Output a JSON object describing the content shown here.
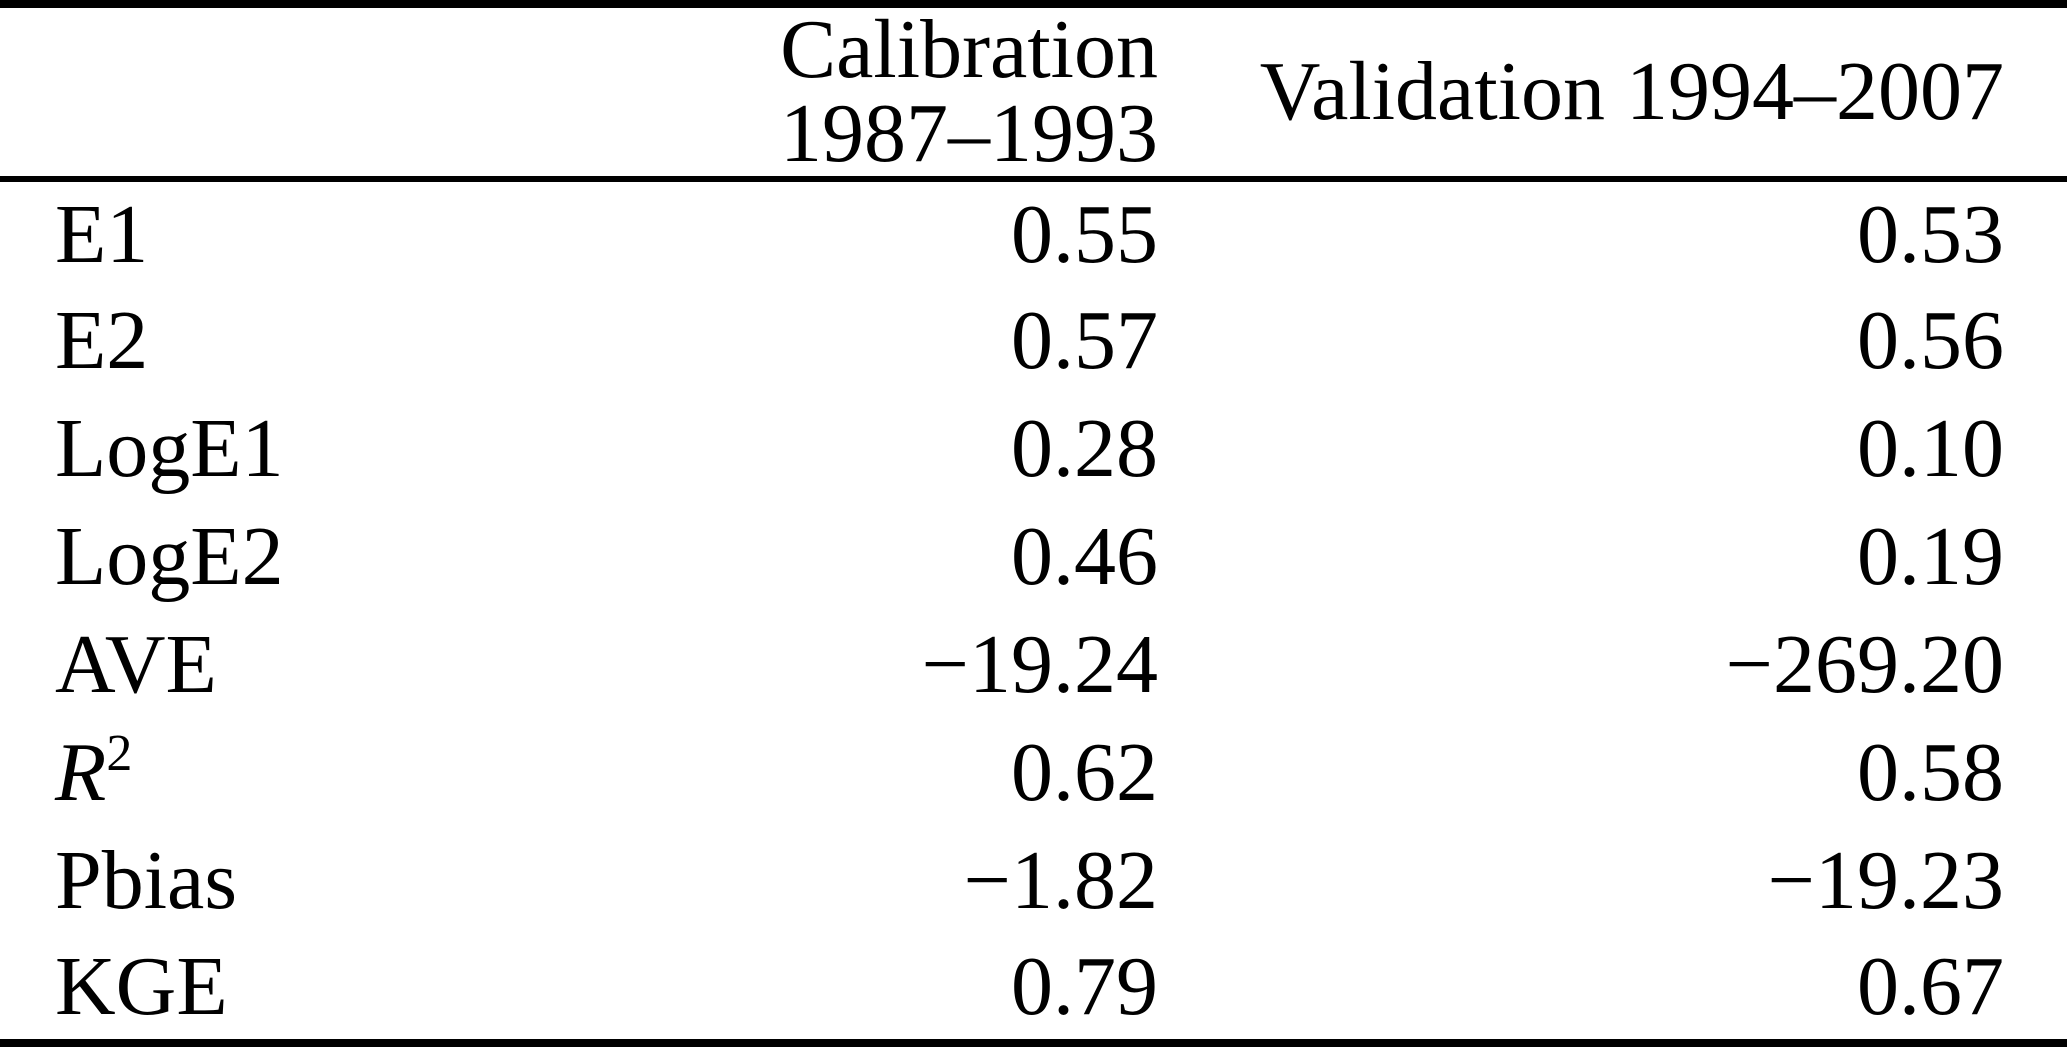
{
  "table": {
    "header": {
      "metric": "",
      "calibration": "Calibration 1987–1993",
      "validation": "Validation 1994–2007"
    },
    "rows": [
      {
        "label_base": "E1",
        "label_sup": "",
        "calibration": "0.55",
        "validation": "0.53"
      },
      {
        "label_base": "E2",
        "label_sup": "",
        "calibration": "0.57",
        "validation": "0.56"
      },
      {
        "label_base": "LogE1",
        "label_sup": "",
        "calibration": "0.28",
        "validation": "0.10"
      },
      {
        "label_base": "LogE2",
        "label_sup": "",
        "calibration": "0.46",
        "validation": "0.19"
      },
      {
        "label_base": "AVE",
        "label_sup": "",
        "calibration": "−19.24",
        "validation": "−269.20"
      },
      {
        "label_base": "R",
        "label_sup": "2",
        "calibration": "0.62",
        "validation": "0.58"
      },
      {
        "label_base": "Pbias",
        "label_sup": "",
        "calibration": "−1.82",
        "validation": "−19.23"
      },
      {
        "label_base": "KGE",
        "label_sup": "",
        "calibration": "0.79",
        "validation": "0.67"
      }
    ]
  },
  "colors": {
    "text": "#000000",
    "background": "#ffffff",
    "rule": "#000000"
  }
}
